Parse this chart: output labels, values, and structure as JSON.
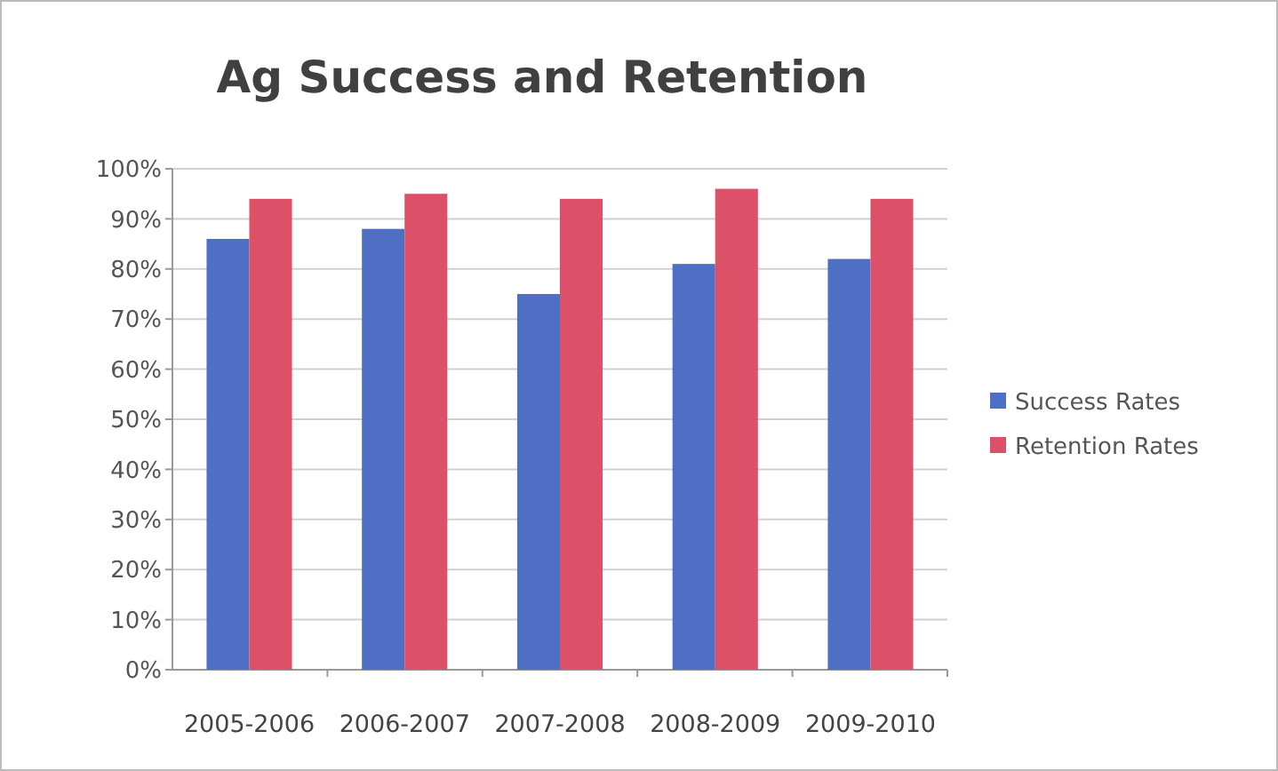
{
  "chart_data": {
    "type": "bar",
    "title": "Ag Success and Retention",
    "categories": [
      "2005-2006",
      "2006-2007",
      "2007-2008",
      "2008-2009",
      "2009-2010"
    ],
    "series": [
      {
        "name": "Success Rates",
        "color": "#4f6fc4",
        "values": [
          86,
          88,
          75,
          81,
          82
        ]
      },
      {
        "name": "Retention Rates",
        "color": "#dc5068",
        "values": [
          94,
          95,
          94,
          96,
          94
        ]
      }
    ],
    "ylim": [
      0,
      100
    ],
    "yticks": [
      {
        "value": 0,
        "label": "0%"
      },
      {
        "value": 10,
        "label": "10%"
      },
      {
        "value": 20,
        "label": "20%"
      },
      {
        "value": 30,
        "label": "30%"
      },
      {
        "value": 40,
        "label": "40%"
      },
      {
        "value": 50,
        "label": "50%"
      },
      {
        "value": 60,
        "label": "60%"
      },
      {
        "value": 70,
        "label": "70%"
      },
      {
        "value": 80,
        "label": "80%"
      },
      {
        "value": 90,
        "label": "90%"
      },
      {
        "value": 100,
        "label": "100%"
      }
    ],
    "grid": "y",
    "legend": "right"
  }
}
